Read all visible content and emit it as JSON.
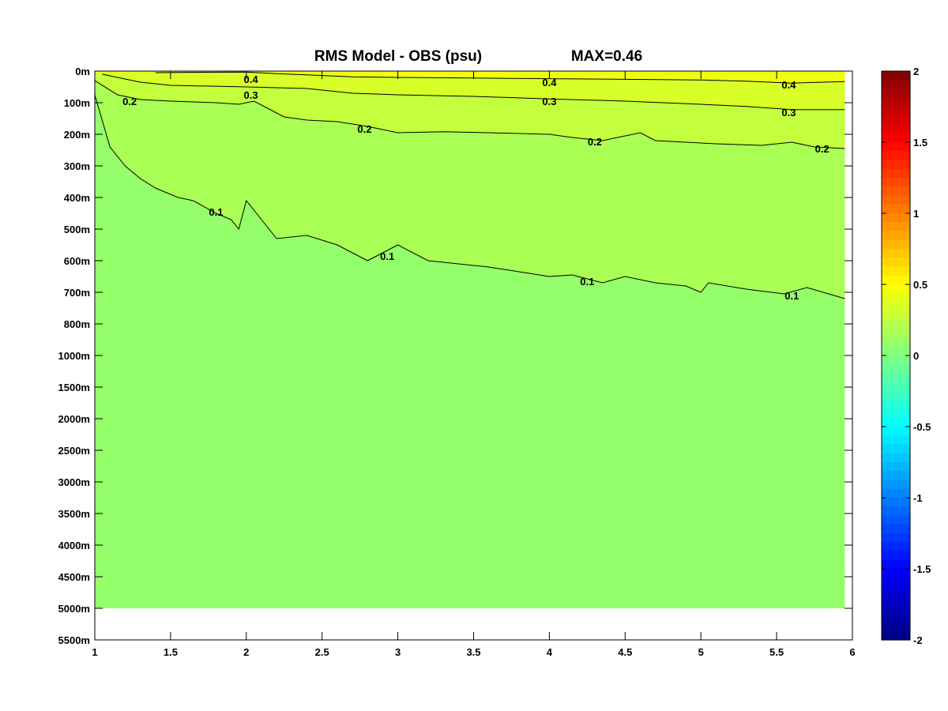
{
  "chart_data": {
    "type": "heatmap",
    "title": "RMS Model - OBS (psu)",
    "max_label": "MAX=0.46",
    "xlim": [
      1,
      6
    ],
    "x_ticks": [
      "1",
      "1.5",
      "2",
      "2.5",
      "3",
      "3.5",
      "4",
      "4.5",
      "5",
      "5.5",
      "6"
    ],
    "y_ticks": [
      "0m",
      "100m",
      "200m",
      "300m",
      "400m",
      "500m",
      "600m",
      "700m",
      "800m",
      "1000m",
      "1500m",
      "2000m",
      "2500m",
      "3000m",
      "3500m",
      "4000m",
      "4500m",
      "5000m",
      "5500m"
    ],
    "y_index_lim": [
      0,
      18
    ],
    "data_extent": {
      "x": [
        1,
        5.95
      ],
      "y_index": [
        0,
        17
      ]
    },
    "colorbar": {
      "colormap": "jet",
      "range": [
        -2,
        2
      ],
      "ticks": [
        "2",
        "1.5",
        "1",
        "0.5",
        "0",
        "-0.5",
        "-1",
        "-1.5",
        "-2"
      ]
    },
    "fill_bands": [
      {
        "range": "0.4-0.5",
        "color": "#f0ff10"
      },
      {
        "range": "0.3-0.4",
        "color": "#d8ff28"
      },
      {
        "range": "0.2-0.3",
        "color": "#c3ff3c"
      },
      {
        "range": "0.1-0.2",
        "color": "#aaff55"
      },
      {
        "range": "0.0-0.1",
        "color": "#94ff6b"
      }
    ],
    "contours": [
      {
        "level": "0.4",
        "points": [
          [
            1.4,
            0.05
          ],
          [
            1.6,
            0.04
          ],
          [
            2.0,
            0.03
          ],
          [
            2.2,
            0.08
          ],
          [
            2.4,
            0.12
          ],
          [
            2.7,
            0.18
          ],
          [
            3.0,
            0.2
          ],
          [
            3.5,
            0.22
          ],
          [
            4.0,
            0.24
          ],
          [
            4.5,
            0.26
          ],
          [
            5.0,
            0.28
          ],
          [
            5.3,
            0.32
          ],
          [
            5.6,
            0.38
          ],
          [
            5.95,
            0.33
          ]
        ],
        "labels": [
          {
            "x": 2.03,
            "y": 0.25
          },
          {
            "x": 4.0,
            "y": 0.35
          },
          {
            "x": 5.58,
            "y": 0.42
          }
        ]
      },
      {
        "level": "0.3",
        "points": [
          [
            1.05,
            0.1
          ],
          [
            1.3,
            0.35
          ],
          [
            1.5,
            0.45
          ],
          [
            2.0,
            0.5
          ],
          [
            2.4,
            0.55
          ],
          [
            2.7,
            0.7
          ],
          [
            3.0,
            0.75
          ],
          [
            3.5,
            0.8
          ],
          [
            4.0,
            0.88
          ],
          [
            4.5,
            0.95
          ],
          [
            5.0,
            1.05
          ],
          [
            5.3,
            1.12
          ],
          [
            5.6,
            1.22
          ],
          [
            5.95,
            1.22
          ]
        ],
        "labels": [
          {
            "x": 2.03,
            "y": 0.75
          },
          {
            "x": 4.0,
            "y": 0.95
          },
          {
            "x": 5.58,
            "y": 1.3
          }
        ]
      },
      {
        "level": "0.2",
        "points": [
          [
            1.0,
            0.3
          ],
          [
            1.15,
            0.75
          ],
          [
            1.3,
            0.9
          ],
          [
            1.5,
            0.95
          ],
          [
            1.8,
            1.0
          ],
          [
            1.95,
            1.05
          ],
          [
            2.05,
            0.95
          ],
          [
            2.15,
            1.2
          ],
          [
            2.25,
            1.45
          ],
          [
            2.4,
            1.55
          ],
          [
            2.6,
            1.6
          ],
          [
            2.8,
            1.75
          ],
          [
            3.0,
            1.95
          ],
          [
            3.3,
            1.92
          ],
          [
            3.6,
            1.95
          ],
          [
            4.0,
            2.0
          ],
          [
            4.15,
            2.1
          ],
          [
            4.35,
            2.2
          ],
          [
            4.6,
            1.95
          ],
          [
            4.7,
            2.2
          ],
          [
            4.9,
            2.25
          ],
          [
            5.1,
            2.3
          ],
          [
            5.4,
            2.35
          ],
          [
            5.6,
            2.25
          ],
          [
            5.75,
            2.4
          ],
          [
            5.95,
            2.45
          ]
        ],
        "labels": [
          {
            "x": 1.23,
            "y": 0.95
          },
          {
            "x": 2.78,
            "y": 1.82
          },
          {
            "x": 4.3,
            "y": 2.22
          },
          {
            "x": 5.8,
            "y": 2.45
          }
        ]
      },
      {
        "level": "0.1",
        "points": [
          [
            1.0,
            0.75
          ],
          [
            1.1,
            2.4
          ],
          [
            1.2,
            3.0
          ],
          [
            1.3,
            3.4
          ],
          [
            1.4,
            3.7
          ],
          [
            1.55,
            4.0
          ],
          [
            1.65,
            4.1
          ],
          [
            1.8,
            4.5
          ],
          [
            1.9,
            4.7
          ],
          [
            1.95,
            5.0
          ],
          [
            2.0,
            4.1
          ],
          [
            2.1,
            4.7
          ],
          [
            2.2,
            5.3
          ],
          [
            2.4,
            5.2
          ],
          [
            2.6,
            5.5
          ],
          [
            2.8,
            6.0
          ],
          [
            3.0,
            5.5
          ],
          [
            3.2,
            6.0
          ],
          [
            3.4,
            6.1
          ],
          [
            3.6,
            6.2
          ],
          [
            3.8,
            6.35
          ],
          [
            4.0,
            6.5
          ],
          [
            4.15,
            6.45
          ],
          [
            4.35,
            6.7
          ],
          [
            4.5,
            6.5
          ],
          [
            4.7,
            6.7
          ],
          [
            4.9,
            6.8
          ],
          [
            5.0,
            7.0
          ],
          [
            5.05,
            6.7
          ],
          [
            5.3,
            6.9
          ],
          [
            5.55,
            7.05
          ],
          [
            5.7,
            6.85
          ],
          [
            5.95,
            7.2
          ]
        ],
        "labels": [
          {
            "x": 1.8,
            "y": 4.45
          },
          {
            "x": 2.93,
            "y": 5.85
          },
          {
            "x": 4.25,
            "y": 6.65
          },
          {
            "x": 5.6,
            "y": 7.1
          }
        ]
      }
    ]
  }
}
